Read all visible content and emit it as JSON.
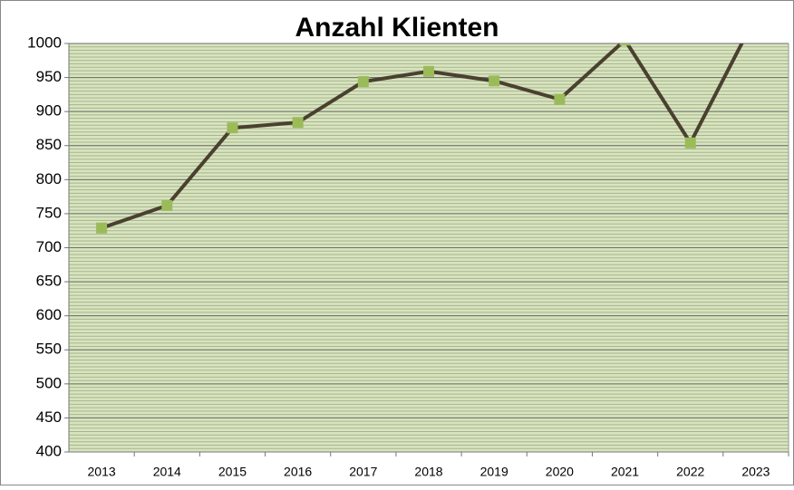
{
  "chart_data": {
    "type": "line",
    "title": "Anzahl Klienten",
    "categories": [
      "2013",
      "2014",
      "2015",
      "2016",
      "2017",
      "2018",
      "2019",
      "2020",
      "2021",
      "2022",
      "2023"
    ],
    "series": [
      {
        "name": "Anzahl Klienten",
        "color": "#4a4030",
        "marker_color": "#9bbb59",
        "values": [
          729,
          762,
          876,
          884,
          944,
          959,
          945,
          918,
          1005,
          854,
          1040
        ]
      }
    ],
    "ylim": [
      400,
      1000
    ],
    "yticks": [
      400,
      450,
      500,
      550,
      600,
      650,
      700,
      750,
      800,
      850,
      900,
      950,
      1000
    ],
    "grid": true,
    "minor_grid_step": 5,
    "plot_background": "#d7e4bd"
  }
}
